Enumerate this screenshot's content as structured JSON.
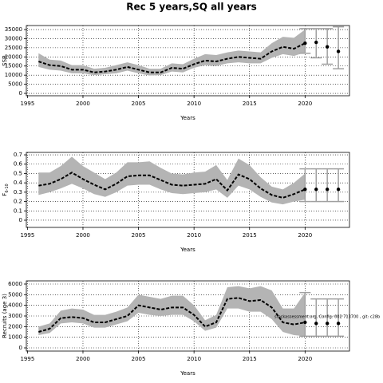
{
  "title": "Rec 5 years,SQ all years",
  "chart_data": [
    {
      "type": "line",
      "xlabel": "Years",
      "ylabel": "SSB",
      "xlim": [
        1994.9,
        2024
      ],
      "ylim": [
        -1300,
        37200
      ],
      "xticks": [
        1995,
        2000,
        2005,
        2010,
        2015,
        2020
      ],
      "yticks": [
        0,
        5000,
        10000,
        15000,
        20000,
        25000,
        30000,
        35000
      ],
      "grid": true,
      "band_color": "#b4b4b4",
      "x": [
        1996,
        1997,
        1998,
        1999,
        2000,
        2001,
        2002,
        2003,
        2004,
        2005,
        2006,
        2007,
        2008,
        2009,
        2010,
        2011,
        2012,
        2013,
        2014,
        2015,
        2016,
        2017,
        2018,
        2019,
        2020
      ],
      "series": [
        {
          "color": "#000000",
          "values": [
            17500,
            15500,
            15000,
            13000,
            13000,
            11500,
            12000,
            13000,
            14500,
            13000,
            11500,
            11500,
            14000,
            13500,
            16000,
            18000,
            17500,
            19000,
            20000,
            19500,
            19000,
            23000,
            25500,
            24500,
            27500
          ],
          "lower": [
            14500,
            13000,
            12500,
            11000,
            11000,
            10000,
            10500,
            11000,
            12500,
            11000,
            9800,
            10000,
            12000,
            11500,
            14000,
            15500,
            15000,
            16500,
            17000,
            16500,
            16500,
            19500,
            21500,
            20500,
            22500
          ],
          "upper": [
            22000,
            18500,
            18000,
            15500,
            15500,
            13500,
            14000,
            15500,
            17000,
            15500,
            13500,
            13500,
            16500,
            16000,
            19000,
            21500,
            21000,
            22500,
            23500,
            23000,
            22500,
            27500,
            31000,
            30500,
            35000
          ]
        }
      ],
      "projection": {
        "x": [
          2020,
          2021,
          2022,
          2023
        ],
        "values": [
          27500,
          28000,
          25500,
          23000
        ],
        "lower": [
          22000,
          19500,
          16000,
          13500
        ],
        "upper": [
          35500,
          35500,
          35500,
          36500
        ],
        "color": "#a0a0a0"
      }
    },
    {
      "type": "line",
      "xlabel": "Years",
      "ylabel": "F",
      "ylabel_sub": "6-10",
      "xlim": [
        1994.9,
        2024
      ],
      "ylim": [
        -0.077,
        0.726
      ],
      "xticks": [
        1995,
        2000,
        2005,
        2010,
        2015,
        2020
      ],
      "yticks": [
        0.0,
        0.1,
        0.2,
        0.3,
        0.4,
        0.5,
        0.6,
        0.7
      ],
      "grid": true,
      "band_color": "#b4b4b4",
      "x": [
        1996,
        1997,
        1998,
        1999,
        2000,
        2001,
        2002,
        2003,
        2004,
        2005,
        2006,
        2007,
        2008,
        2009,
        2010,
        2011,
        2012,
        2013,
        2014,
        2015,
        2016,
        2017,
        2018,
        2019,
        2020
      ],
      "series": [
        {
          "color": "#000000",
          "values": [
            0.37,
            0.39,
            0.44,
            0.51,
            0.44,
            0.38,
            0.33,
            0.39,
            0.47,
            0.48,
            0.48,
            0.43,
            0.38,
            0.37,
            0.38,
            0.39,
            0.44,
            0.32,
            0.49,
            0.44,
            0.34,
            0.27,
            0.24,
            0.28,
            0.33
          ],
          "lower": [
            0.27,
            0.3,
            0.34,
            0.39,
            0.34,
            0.28,
            0.25,
            0.3,
            0.37,
            0.38,
            0.38,
            0.33,
            0.29,
            0.28,
            0.29,
            0.3,
            0.33,
            0.24,
            0.37,
            0.33,
            0.25,
            0.19,
            0.17,
            0.2,
            0.22
          ],
          "upper": [
            0.51,
            0.51,
            0.58,
            0.68,
            0.58,
            0.51,
            0.44,
            0.51,
            0.62,
            0.62,
            0.63,
            0.56,
            0.5,
            0.49,
            0.51,
            0.52,
            0.59,
            0.43,
            0.66,
            0.59,
            0.46,
            0.36,
            0.33,
            0.4,
            0.5
          ]
        }
      ],
      "projection": {
        "x": [
          2020,
          2021,
          2022,
          2023
        ],
        "values": [
          0.33,
          0.33,
          0.33,
          0.33
        ],
        "lower": [
          0.2,
          0.2,
          0.2,
          0.2
        ],
        "upper": [
          0.55,
          0.55,
          0.55,
          0.55
        ],
        "color": "#a0a0a0"
      }
    },
    {
      "type": "line",
      "xlabel": "Years",
      "ylabel": "Recruits (age 3)",
      "xlim": [
        1994.9,
        2024
      ],
      "ylim": [
        -300,
        6300
      ],
      "xticks": [
        1995,
        2000,
        2005,
        2010,
        2015,
        2020
      ],
      "yticks": [
        0,
        1000,
        2000,
        3000,
        4000,
        5000,
        6000
      ],
      "grid": true,
      "band_color": "#b4b4b4",
      "annotation": "stockassessment.org, Config: 002 713700 , git: c28b",
      "x": [
        1996,
        1997,
        1998,
        1999,
        2000,
        2001,
        2002,
        2003,
        2004,
        2005,
        2006,
        2007,
        2008,
        2009,
        2010,
        2011,
        2012,
        2013,
        2014,
        2015,
        2016,
        2017,
        2018,
        2019,
        2020
      ],
      "series": [
        {
          "color": "#000000",
          "values": [
            1500,
            1800,
            2800,
            2900,
            2800,
            2400,
            2400,
            2700,
            3000,
            4000,
            3800,
            3600,
            3800,
            3800,
            3100,
            2000,
            2400,
            4600,
            4700,
            4400,
            4500,
            3800,
            2400,
            2200,
            2400
          ],
          "lower": [
            1200,
            1400,
            2300,
            2400,
            2300,
            1900,
            1900,
            2200,
            2500,
            3300,
            3100,
            3000,
            3100,
            3100,
            2500,
            1600,
            1900,
            3700,
            3700,
            3400,
            3400,
            2700,
            1500,
            1200,
            1100
          ],
          "upper": [
            2000,
            2300,
            3500,
            3700,
            3600,
            3100,
            3100,
            3400,
            3800,
            5000,
            4800,
            4600,
            4900,
            4900,
            4000,
            2600,
            3100,
            5700,
            5800,
            5600,
            5800,
            5400,
            3700,
            3700,
            5200
          ]
        }
      ],
      "projection": {
        "x": [
          2020,
          2021,
          2022,
          2023
        ],
        "values": [
          2400,
          2300,
          2300,
          2300
        ],
        "lower": [
          1100,
          1100,
          1100,
          1100
        ],
        "upper": [
          5200,
          4600,
          4600,
          4600
        ],
        "color": "#a0a0a0"
      }
    }
  ]
}
